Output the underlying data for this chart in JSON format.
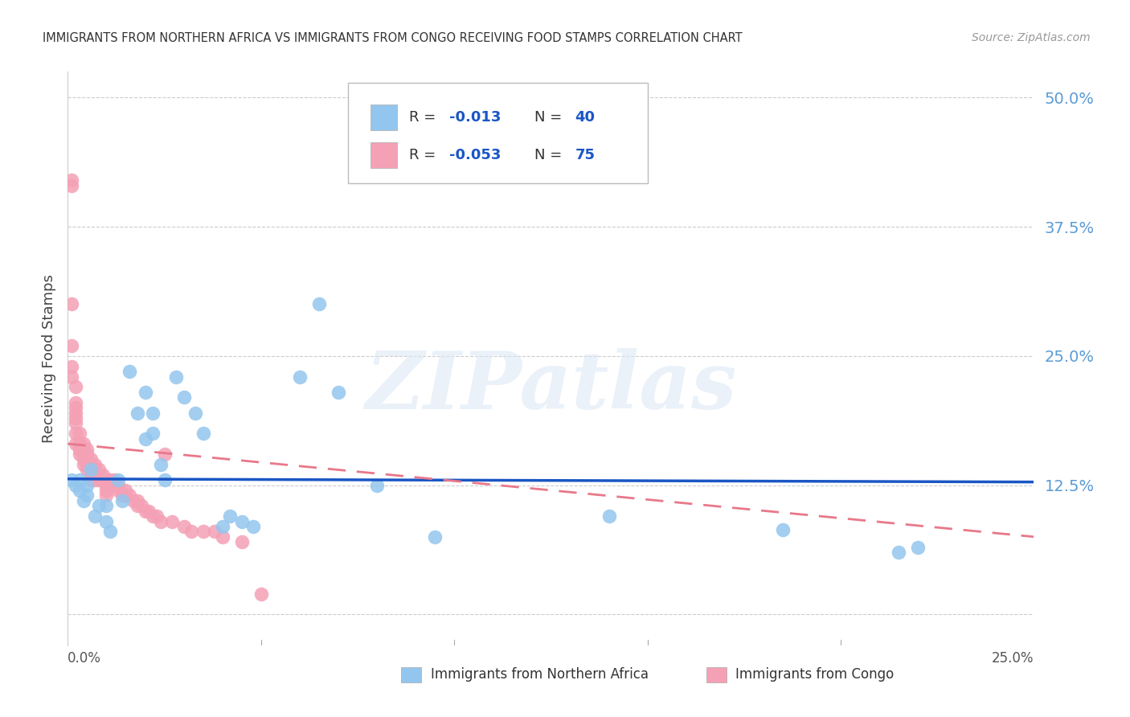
{
  "title": "IMMIGRANTS FROM NORTHERN AFRICA VS IMMIGRANTS FROM CONGO RECEIVING FOOD STAMPS CORRELATION CHART",
  "source": "Source: ZipAtlas.com",
  "ylabel": "Receiving Food Stamps",
  "color_blue": "#93C6EE",
  "color_pink": "#F4A0B5",
  "color_blue_line": "#1A56C4",
  "color_pink_line": "#E8788A",
  "color_ytick": "#5B9BD5",
  "color_grid": "#CCCCCC",
  "watermark_text": "ZIPatlas",
  "xmin": 0.0,
  "xmax": 0.25,
  "ymin": -0.03,
  "ymax": 0.525,
  "ytick_vals": [
    0.0,
    0.125,
    0.25,
    0.375,
    0.5
  ],
  "ytick_labels": [
    "",
    "12.5%",
    "25.0%",
    "37.5%",
    "50.0%"
  ],
  "blue_x": [
    0.001,
    0.002,
    0.003,
    0.003,
    0.004,
    0.005,
    0.005,
    0.006,
    0.007,
    0.008,
    0.01,
    0.01,
    0.011,
    0.013,
    0.014,
    0.016,
    0.018,
    0.02,
    0.02,
    0.022,
    0.022,
    0.024,
    0.025,
    0.028,
    0.03,
    0.033,
    0.035,
    0.04,
    0.042,
    0.045,
    0.048,
    0.06,
    0.065,
    0.07,
    0.08,
    0.095,
    0.14,
    0.185,
    0.215,
    0.22
  ],
  "blue_y": [
    0.13,
    0.125,
    0.12,
    0.13,
    0.11,
    0.125,
    0.115,
    0.14,
    0.095,
    0.105,
    0.105,
    0.09,
    0.08,
    0.13,
    0.11,
    0.235,
    0.195,
    0.215,
    0.17,
    0.175,
    0.195,
    0.145,
    0.13,
    0.23,
    0.21,
    0.195,
    0.175,
    0.085,
    0.095,
    0.09,
    0.085,
    0.23,
    0.3,
    0.215,
    0.125,
    0.075,
    0.095,
    0.082,
    0.06,
    0.065
  ],
  "pink_x": [
    0.001,
    0.001,
    0.001,
    0.001,
    0.001,
    0.001,
    0.002,
    0.002,
    0.002,
    0.002,
    0.002,
    0.002,
    0.002,
    0.002,
    0.003,
    0.003,
    0.003,
    0.003,
    0.003,
    0.004,
    0.004,
    0.004,
    0.004,
    0.004,
    0.005,
    0.005,
    0.005,
    0.005,
    0.005,
    0.006,
    0.006,
    0.006,
    0.006,
    0.006,
    0.007,
    0.007,
    0.007,
    0.007,
    0.008,
    0.008,
    0.008,
    0.009,
    0.009,
    0.01,
    0.01,
    0.01,
    0.01,
    0.011,
    0.011,
    0.012,
    0.012,
    0.013,
    0.013,
    0.014,
    0.015,
    0.015,
    0.016,
    0.017,
    0.018,
    0.018,
    0.019,
    0.02,
    0.021,
    0.022,
    0.023,
    0.024,
    0.025,
    0.027,
    0.03,
    0.032,
    0.035,
    0.038,
    0.04,
    0.045,
    0.05
  ],
  "pink_y": [
    0.42,
    0.415,
    0.3,
    0.26,
    0.24,
    0.23,
    0.22,
    0.205,
    0.2,
    0.195,
    0.19,
    0.185,
    0.175,
    0.165,
    0.175,
    0.165,
    0.165,
    0.16,
    0.155,
    0.165,
    0.16,
    0.155,
    0.15,
    0.145,
    0.16,
    0.155,
    0.15,
    0.145,
    0.14,
    0.15,
    0.145,
    0.14,
    0.135,
    0.13,
    0.145,
    0.14,
    0.135,
    0.13,
    0.14,
    0.135,
    0.13,
    0.135,
    0.13,
    0.13,
    0.125,
    0.12,
    0.115,
    0.13,
    0.125,
    0.13,
    0.125,
    0.125,
    0.12,
    0.115,
    0.12,
    0.115,
    0.115,
    0.11,
    0.11,
    0.105,
    0.105,
    0.1,
    0.1,
    0.095,
    0.095,
    0.09,
    0.155,
    0.09,
    0.085,
    0.08,
    0.08,
    0.08,
    0.075,
    0.07,
    0.02
  ],
  "blue_line_x0": 0.0,
  "blue_line_x1": 0.25,
  "blue_line_y0": 0.131,
  "blue_line_y1": 0.128,
  "pink_line_x0": 0.0,
  "pink_line_x1": 0.25,
  "pink_line_y0": 0.165,
  "pink_line_y1": 0.075
}
